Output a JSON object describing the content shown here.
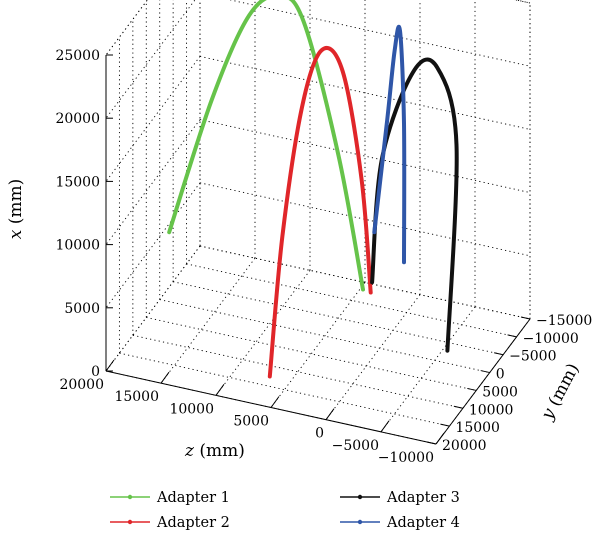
{
  "chart_data": {
    "type": "line",
    "dimensions": "3d",
    "axes": {
      "x": {
        "label_letter": "x",
        "label_unit": "(mm)",
        "ticks": [
          "0",
          "5000",
          "10000",
          "15000",
          "20000",
          "25000"
        ],
        "lim": [
          0,
          25000
        ]
      },
      "y": {
        "label_letter": "y",
        "label_unit": "(mm)",
        "ticks": [
          "−15000",
          "−10000",
          "−5000",
          "0",
          "5000",
          "10000",
          "15000",
          "20000"
        ],
        "lim": [
          -15000,
          20000
        ]
      },
      "z": {
        "label_letter": "z",
        "label_unit": "(mm)",
        "ticks": [
          "20000",
          "15000",
          "10000",
          "5000",
          "0",
          "−5000",
          "−10000"
        ],
        "lim": [
          -10000,
          20000
        ]
      }
    },
    "grid": true,
    "legend_position": "bottom",
    "series": [
      {
        "name": "Adapter 1",
        "color": "#66c34a",
        "points": [
          {
            "z": 19500,
            "y": -1500,
            "x": 5000
          },
          {
            "z": 15800,
            "y": -2200,
            "x": 16000
          },
          {
            "z": 12500,
            "y": -2600,
            "x": 23200
          },
          {
            "z": 9800,
            "y": -2800,
            "x": 25200
          },
          {
            "z": 7600,
            "y": -2900,
            "x": 23500
          },
          {
            "z": 4500,
            "y": -3100,
            "x": 13500
          },
          {
            "z": 2300,
            "y": -3200,
            "x": 3300
          }
        ]
      },
      {
        "name": "Adapter 2",
        "color": "#e0262a",
        "points": [
          {
            "z": 9500,
            "y": 2000,
            "x": -3500
          },
          {
            "z": 8600,
            "y": 1000,
            "x": 7500
          },
          {
            "z": 7200,
            "y": -500,
            "x": 17500
          },
          {
            "z": 5700,
            "y": -1700,
            "x": 22000
          },
          {
            "z": 4000,
            "y": -2600,
            "x": 20400
          },
          {
            "z": 2400,
            "y": -3100,
            "x": 12000
          },
          {
            "z": 1600,
            "y": -3200,
            "x": 3200
          }
        ]
      },
      {
        "name": "Adapter 3",
        "color": "#111111",
        "points": [
          {
            "z": 1500,
            "y": -3300,
            "x": 4000
          },
          {
            "z": 500,
            "y": -2800,
            "x": 14000
          },
          {
            "z": -2200,
            "y": -3300,
            "x": 21300
          },
          {
            "z": -4400,
            "y": -3400,
            "x": 22100
          },
          {
            "z": -6300,
            "y": -2800,
            "x": 16500
          },
          {
            "z": -7500,
            "y": 5500,
            "x": 2800
          }
        ]
      },
      {
        "name": "Adapter 4",
        "color": "#2f56a8",
        "points": [
          {
            "z": 1300,
            "y": -3300,
            "x": 8000
          },
          {
            "z": 200,
            "y": -3600,
            "x": 17000
          },
          {
            "z": -400,
            "y": -3900,
            "x": 22500
          },
          {
            "z": -900,
            "y": -3850,
            "x": 24200
          },
          {
            "z": -1300,
            "y": -3700,
            "x": 17000
          },
          {
            "z": -1300,
            "y": -3700,
            "x": 6000
          }
        ]
      }
    ]
  }
}
